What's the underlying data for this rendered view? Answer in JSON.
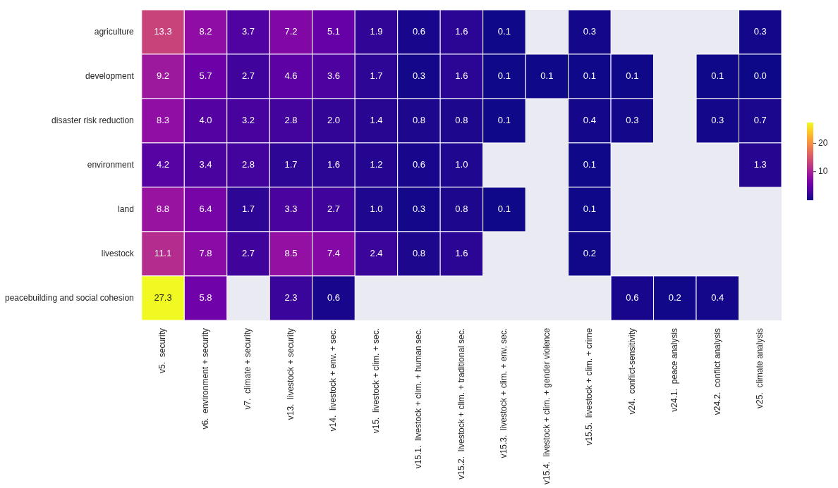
{
  "chart_data": {
    "type": "heatmap",
    "categories": [
      "v5.  security",
      "v6.  environment + security",
      "v7.  climate + security",
      "v13.  livestock + security",
      "v14.  livestock + env. + sec.",
      "v15.  livestock + clim. + sec.",
      "v15.1.  livestock + clim. + human sec.",
      "v15.2.  livestock + clim. + traditional sec.",
      "v15.3.  livestock + clim. + env. sec.",
      "v15.4.  livestock + clim. + gender violence",
      "v15.5.  livestock + clim. + crime",
      "v24.  conflict-sensitivity",
      "v24.1.  peace analysis",
      "v24.2.  conflict analysis",
      "v25.  climate analysis"
    ],
    "y_categories": [
      "agriculture",
      "development",
      "disaster risk reduction",
      "environment",
      "land",
      "livestock",
      "peacebuilding and social cohesion"
    ],
    "cells": [
      [
        13.3,
        8.2,
        3.7,
        7.2,
        5.1,
        1.9,
        0.6,
        1.6,
        0.1,
        null,
        0.3,
        null,
        null,
        null,
        0.3
      ],
      [
        9.2,
        5.7,
        2.7,
        4.6,
        3.6,
        1.7,
        0.3,
        1.6,
        0.1,
        0.1,
        0.1,
        0.1,
        null,
        0.1,
        0.0
      ],
      [
        8.3,
        4.0,
        3.2,
        2.8,
        2.0,
        1.4,
        0.8,
        0.8,
        0.1,
        null,
        0.4,
        0.3,
        null,
        0.3,
        0.7
      ],
      [
        4.2,
        3.4,
        2.8,
        1.7,
        1.6,
        1.2,
        0.6,
        1.0,
        null,
        null,
        0.1,
        null,
        null,
        null,
        1.3
      ],
      [
        8.8,
        6.4,
        1.7,
        3.3,
        2.7,
        1.0,
        0.3,
        0.8,
        0.1,
        null,
        0.1,
        null,
        null,
        null,
        null
      ],
      [
        11.1,
        7.8,
        2.7,
        8.5,
        7.4,
        2.4,
        0.8,
        1.6,
        null,
        null,
        0.2,
        null,
        null,
        null,
        null
      ],
      [
        27.3,
        5.8,
        null,
        2.3,
        0.6,
        null,
        null,
        null,
        null,
        null,
        null,
        0.6,
        0.2,
        0.4,
        null
      ]
    ],
    "cell_labels": [
      [
        "13.3",
        "8.2",
        "3.7",
        "7.2",
        "5.1",
        "1.9",
        "0.6",
        "1.6",
        "0.1",
        null,
        "0.3",
        null,
        null,
        null,
        "0.3"
      ],
      [
        "9.2",
        "5.7",
        "2.7",
        "4.6",
        "3.6",
        "1.7",
        "0.3",
        "1.6",
        "0.1",
        "0.1",
        "0.1",
        "0.1",
        null,
        "0.1",
        "0.0"
      ],
      [
        "8.3",
        "4.0",
        "3.2",
        "2.8",
        "2.0",
        "1.4",
        "0.8",
        "0.8",
        "0.1",
        null,
        "0.4",
        "0.3",
        null,
        "0.3",
        "0.7"
      ],
      [
        "4.2",
        "3.4",
        "2.8",
        "1.7",
        "1.6",
        "1.2",
        "0.6",
        "1.0",
        null,
        null,
        "0.1",
        null,
        null,
        null,
        "1.3"
      ],
      [
        "8.8",
        "6.4",
        "1.7",
        "3.3",
        "2.7",
        "1.0",
        "0.3",
        "0.8",
        "0.1",
        null,
        "0.1",
        null,
        null,
        null,
        null
      ],
      [
        "11.1",
        "7.8",
        "2.7",
        "8.5",
        "7.4",
        "2.4",
        "0.8",
        "1.6",
        null,
        null,
        "0.2",
        null,
        null,
        null,
        null
      ],
      [
        "27.3",
        "5.8",
        null,
        "2.3",
        "0.6",
        null,
        null,
        null,
        null,
        null,
        null,
        "0.6",
        "0.2",
        "0.4",
        null
      ]
    ],
    "clim": [
      0,
      27.3
    ],
    "cticks": [
      10,
      20
    ]
  }
}
